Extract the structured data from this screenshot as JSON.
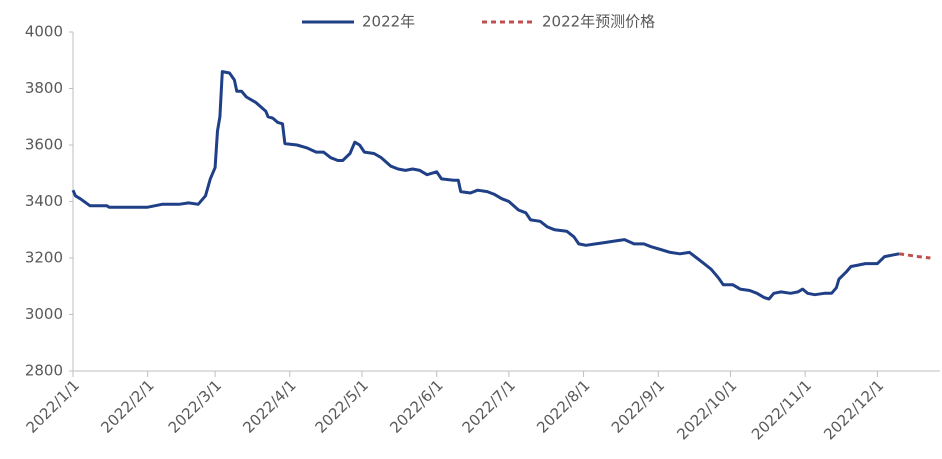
{
  "chart_data": {
    "type": "line",
    "xlim": [
      "2022/1/1",
      "2022/12/27"
    ],
    "xticks": [
      "2022/1/1",
      "2022/2/1",
      "2022/3/1",
      "2022/4/1",
      "2022/5/1",
      "2022/6/1",
      "2022/7/1",
      "2022/8/1",
      "2022/9/1",
      "2022/10/1",
      "2022/11/1",
      "2022/12/1"
    ],
    "ylim": [
      2800,
      4000
    ],
    "yticks": [
      2800,
      3000,
      3200,
      3400,
      3600,
      3800,
      4000
    ],
    "legend": "top",
    "series": [
      {
        "name": "2022年",
        "color": "#1f3f86",
        "dash": false,
        "x": [
          "2022/1/1",
          "2022/1/2",
          "2022/1/4",
          "2022/1/8",
          "2022/1/15",
          "2022/1/16",
          "2022/2/1",
          "2022/2/7",
          "2022/2/14",
          "2022/2/18",
          "2022/2/22",
          "2022/2/25",
          "2022/2/27",
          "2022/3/1",
          "2022/3/2",
          "2022/3/3",
          "2022/3/4",
          "2022/3/7",
          "2022/3/9",
          "2022/3/10",
          "2022/3/12",
          "2022/3/14",
          "2022/3/18",
          "2022/3/22",
          "2022/3/23",
          "2022/3/25",
          "2022/3/27",
          "2022/3/29",
          "2022/3/30",
          "2022/4/4",
          "2022/4/8",
          "2022/4/12",
          "2022/4/15",
          "2022/4/18",
          "2022/4/21",
          "2022/4/23",
          "2022/4/26",
          "2022/4/28",
          "2022/4/30",
          "2022/5/2",
          "2022/5/6",
          "2022/5/9",
          "2022/5/13",
          "2022/5/16",
          "2022/5/19",
          "2022/5/22",
          "2022/5/25",
          "2022/5/28",
          "2022/6/1",
          "2022/6/3",
          "2022/6/8",
          "2022/6/10",
          "2022/6/11",
          "2022/6/15",
          "2022/6/18",
          "2022/6/22",
          "2022/6/25",
          "2022/6/28",
          "2022/7/1",
          "2022/7/5",
          "2022/7/8",
          "2022/7/10",
          "2022/7/14",
          "2022/7/17",
          "2022/7/20",
          "2022/7/25",
          "2022/7/28",
          "2022/7/30",
          "2022/8/2",
          "2022/8/6",
          "2022/8/10",
          "2022/8/14",
          "2022/8/18",
          "2022/8/22",
          "2022/8/26",
          "2022/8/29",
          "2022/9/2",
          "2022/9/6",
          "2022/9/10",
          "2022/9/14",
          "2022/9/17",
          "2022/9/20",
          "2022/9/23",
          "2022/9/26",
          "2022/9/28",
          "2022/10/2",
          "2022/10/5",
          "2022/10/9",
          "2022/10/12",
          "2022/10/15",
          "2022/10/17",
          "2022/10/19",
          "2022/10/22",
          "2022/10/26",
          "2022/10/29",
          "2022/10/31",
          "2022/11/2",
          "2022/11/5",
          "2022/11/9",
          "2022/11/12",
          "2022/11/14",
          "2022/11/15",
          "2022/11/18",
          "2022/11/20",
          "2022/11/23",
          "2022/11/26",
          "2022/12/1",
          "2022/12/4",
          "2022/12/7",
          "2022/12/10"
        ],
        "values": [
          3440,
          3420,
          3410,
          3385,
          3385,
          3380,
          3380,
          3390,
          3390,
          3395,
          3390,
          3420,
          3480,
          3520,
          3650,
          3700,
          3860,
          3855,
          3830,
          3790,
          3790,
          3770,
          3750,
          3720,
          3700,
          3695,
          3680,
          3675,
          3605,
          3600,
          3590,
          3575,
          3575,
          3555,
          3545,
          3545,
          3570,
          3610,
          3600,
          3575,
          3570,
          3555,
          3525,
          3515,
          3510,
          3515,
          3510,
          3495,
          3505,
          3480,
          3475,
          3475,
          3435,
          3430,
          3440,
          3435,
          3425,
          3410,
          3400,
          3370,
          3360,
          3335,
          3330,
          3310,
          3300,
          3295,
          3275,
          3250,
          3245,
          3250,
          3255,
          3260,
          3265,
          3250,
          3250,
          3240,
          3230,
          3220,
          3215,
          3220,
          3200,
          3180,
          3160,
          3130,
          3105,
          3105,
          3090,
          3085,
          3075,
          3060,
          3055,
          3075,
          3080,
          3075,
          3080,
          3090,
          3075,
          3070,
          3075,
          3075,
          3095,
          3125,
          3150,
          3170,
          3175,
          3180,
          3180,
          3205,
          3210,
          3215
        ]
      },
      {
        "name": "2022年预测价格",
        "color": "#c0504d",
        "dash": true,
        "x": [
          "2022/12/10",
          "2022/12/14",
          "2022/12/18",
          "2022/12/23"
        ],
        "values": [
          3215,
          3210,
          3205,
          3200
        ]
      }
    ]
  }
}
